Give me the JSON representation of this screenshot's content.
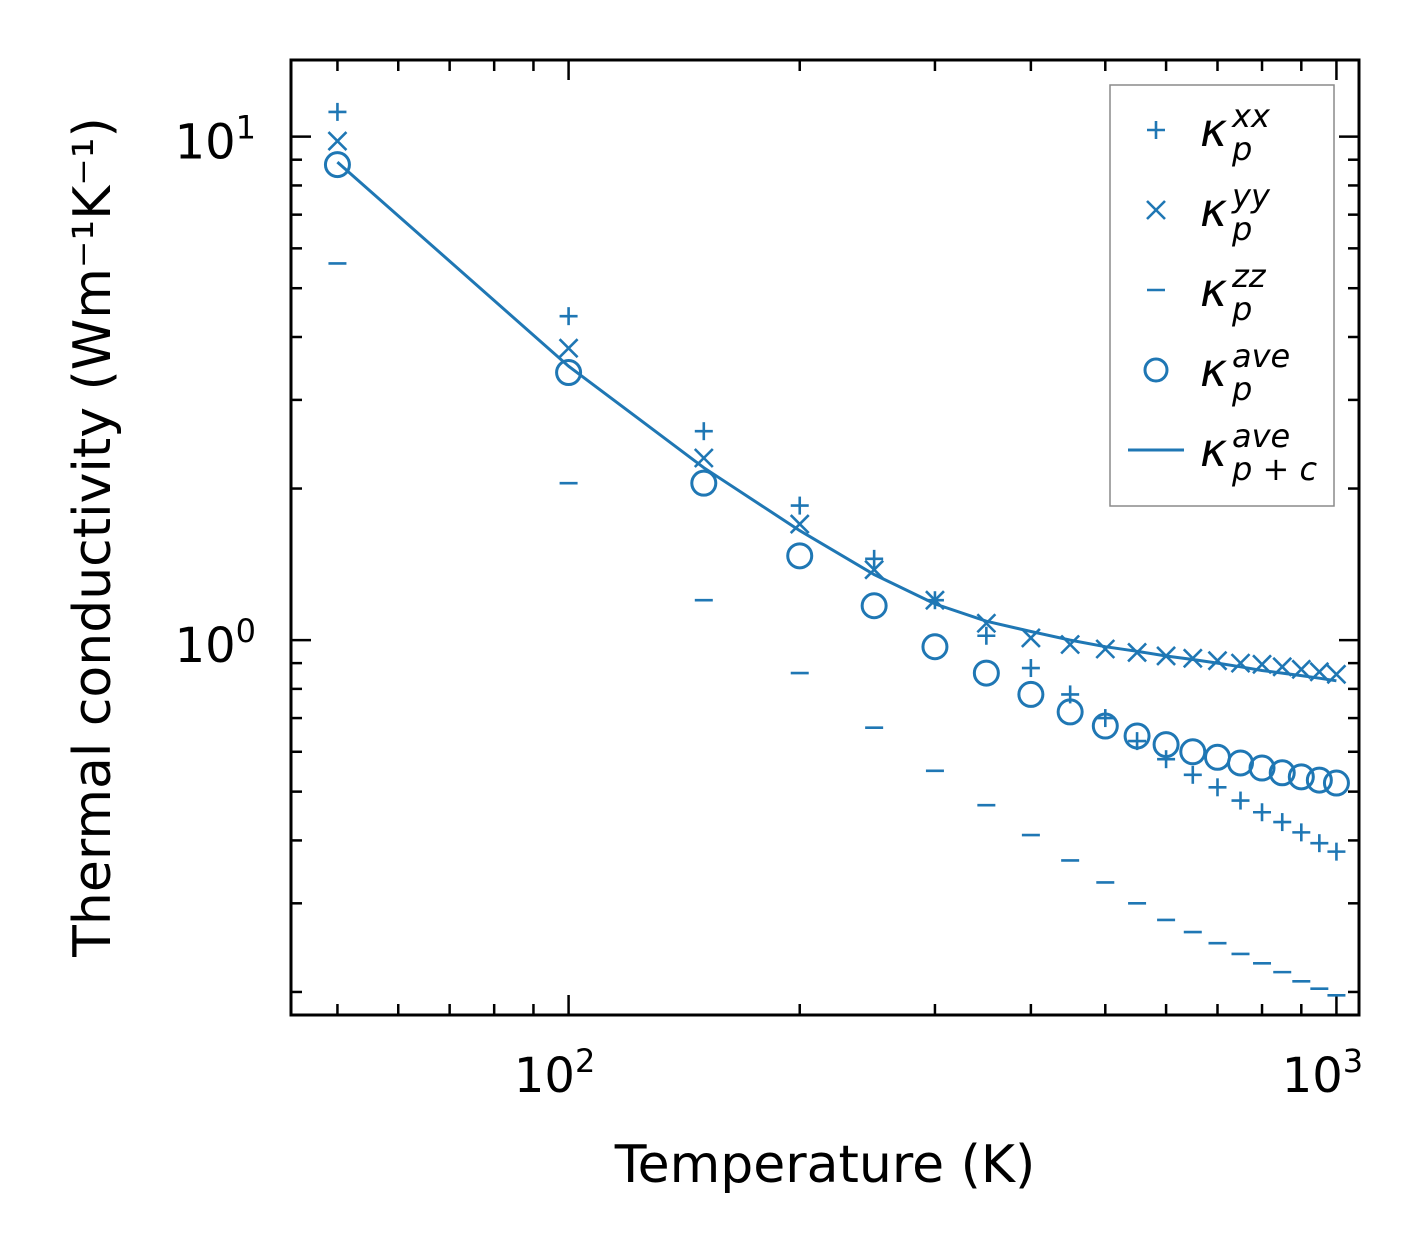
{
  "chart_data": {
    "type": "scatter",
    "x_scale": "log",
    "y_scale": "log",
    "xlabel": "Temperature (K)",
    "ylabel": "Thermal conductivity (Wm⁻¹K⁻¹)",
    "xlim": [
      43.5,
      1070
    ],
    "ylim": [
      0.18,
      14.2
    ],
    "x_ticks": [
      {
        "base": "10",
        "exp": "2",
        "value": 100
      },
      {
        "base": "10",
        "exp": "3",
        "value": 1000
      }
    ],
    "y_ticks": [
      {
        "base": "10",
        "exp": "0",
        "value": 1
      },
      {
        "base": "10",
        "exp": "1",
        "value": 10
      }
    ],
    "color": "#1f77b4",
    "x": [
      50,
      100,
      150,
      200,
      250,
      300,
      350,
      400,
      450,
      500,
      550,
      600,
      650,
      700,
      750,
      800,
      850,
      900,
      950,
      1000
    ],
    "series": [
      {
        "key": "xx",
        "marker": "plus",
        "sup": "xx",
        "sub": "p",
        "values": [
          11.2,
          4.4,
          2.6,
          1.85,
          1.45,
          1.2,
          1.02,
          0.88,
          0.78,
          0.7,
          0.63,
          0.58,
          0.54,
          0.51,
          0.48,
          0.455,
          0.435,
          0.415,
          0.395,
          0.38
        ]
      },
      {
        "key": "yy",
        "marker": "x",
        "sup": "yy",
        "sub": "p",
        "values": [
          9.8,
          3.8,
          2.3,
          1.7,
          1.38,
          1.2,
          1.08,
          1.01,
          0.98,
          0.96,
          0.945,
          0.93,
          0.92,
          0.91,
          0.9,
          0.895,
          0.885,
          0.875,
          0.865,
          0.855
        ]
      },
      {
        "key": "zz",
        "marker": "dash",
        "sup": "zz",
        "sub": "p",
        "values": [
          5.6,
          2.05,
          1.2,
          0.86,
          0.67,
          0.55,
          0.47,
          0.41,
          0.365,
          0.33,
          0.3,
          0.278,
          0.263,
          0.25,
          0.238,
          0.228,
          0.219,
          0.21,
          0.203,
          0.197
        ]
      },
      {
        "key": "ave",
        "marker": "circle",
        "sup": "ave",
        "sub": "p",
        "values": [
          8.8,
          3.4,
          2.05,
          1.47,
          1.17,
          0.97,
          0.86,
          0.78,
          0.72,
          0.675,
          0.645,
          0.62,
          0.6,
          0.585,
          0.57,
          0.557,
          0.545,
          0.535,
          0.527,
          0.52
        ]
      },
      {
        "key": "ave_pc",
        "marker": "line",
        "sup": "ave",
        "sub": "p + c",
        "values": [
          8.9,
          3.5,
          2.2,
          1.65,
          1.35,
          1.18,
          1.09,
          1.04,
          1.0,
          0.97,
          0.95,
          0.93,
          0.915,
          0.9,
          0.885,
          0.87,
          0.86,
          0.85,
          0.84,
          0.83
        ]
      }
    ],
    "legend": {
      "position": "top-right",
      "symbol": "κ"
    }
  }
}
